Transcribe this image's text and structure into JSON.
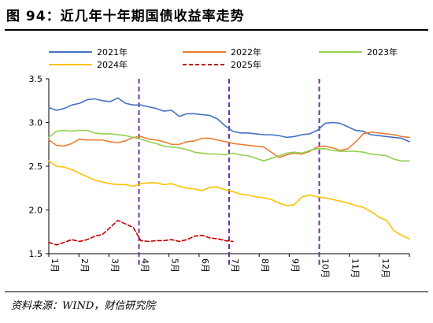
{
  "header": {
    "title": "图 94：近几年十年期国债收益率走势"
  },
  "footer": {
    "source": "资料来源：WIND，财信研究院"
  },
  "chart_data": {
    "type": "line",
    "title": "图 94：近几年十年期国债收益率走势",
    "ylim": [
      1.5,
      3.5
    ],
    "yticks": [
      "1.5",
      "2.0",
      "2.5",
      "3.0",
      "3.5"
    ],
    "months": [
      "1月",
      "2月",
      "3月",
      "4月",
      "5月",
      "6月",
      "7月",
      "8月",
      "9月",
      "10月",
      "11月",
      "12月"
    ],
    "legend_position": "top",
    "quarter_markers": [
      "4月",
      "7月",
      "10月"
    ],
    "grid": false,
    "series": [
      {
        "name": "2021年",
        "color": "#4472C4",
        "dash": false,
        "values": [
          3.17,
          3.14,
          3.16,
          3.2,
          3.22,
          3.26,
          3.27,
          3.25,
          3.24,
          3.28,
          3.22,
          3.2,
          3.2,
          3.18,
          3.16,
          3.13,
          3.14,
          3.07,
          3.1,
          3.1,
          3.09,
          3.08,
          3.04,
          2.96,
          2.9,
          2.88,
          2.88,
          2.87,
          2.86,
          2.86,
          2.85,
          2.83,
          2.84,
          2.86,
          2.87,
          2.91,
          2.99,
          3.0,
          2.99,
          2.95,
          2.91,
          2.9,
          2.86,
          2.85,
          2.84,
          2.83,
          2.82,
          2.78
        ]
      },
      {
        "name": "2022年",
        "color": "#ED7D31",
        "dash": false,
        "values": [
          2.8,
          2.74,
          2.73,
          2.76,
          2.81,
          2.8,
          2.8,
          2.8,
          2.78,
          2.77,
          2.79,
          2.83,
          2.84,
          2.81,
          2.8,
          2.78,
          2.75,
          2.75,
          2.78,
          2.79,
          2.82,
          2.82,
          2.8,
          2.78,
          2.76,
          2.75,
          2.74,
          2.73,
          2.72,
          2.66,
          2.6,
          2.63,
          2.65,
          2.64,
          2.67,
          2.72,
          2.73,
          2.71,
          2.68,
          2.7,
          2.78,
          2.87,
          2.89,
          2.88,
          2.87,
          2.86,
          2.84,
          2.83
        ]
      },
      {
        "name": "2023年",
        "color": "#92D050",
        "dash": false,
        "values": [
          2.83,
          2.9,
          2.91,
          2.9,
          2.91,
          2.91,
          2.88,
          2.87,
          2.87,
          2.86,
          2.85,
          2.83,
          2.81,
          2.78,
          2.76,
          2.73,
          2.72,
          2.71,
          2.69,
          2.66,
          2.65,
          2.64,
          2.64,
          2.63,
          2.65,
          2.63,
          2.62,
          2.59,
          2.56,
          2.59,
          2.62,
          2.65,
          2.66,
          2.65,
          2.68,
          2.7,
          2.7,
          2.68,
          2.67,
          2.67,
          2.67,
          2.66,
          2.64,
          2.63,
          2.62,
          2.58,
          2.56,
          2.56
        ]
      },
      {
        "name": "2024年",
        "color": "#FFC000",
        "dash": false,
        "values": [
          2.56,
          2.5,
          2.49,
          2.46,
          2.42,
          2.38,
          2.34,
          2.32,
          2.3,
          2.29,
          2.29,
          2.27,
          2.3,
          2.31,
          2.31,
          2.29,
          2.3,
          2.27,
          2.25,
          2.24,
          2.22,
          2.26,
          2.26,
          2.23,
          2.21,
          2.18,
          2.17,
          2.15,
          2.14,
          2.12,
          2.08,
          2.05,
          2.06,
          2.15,
          2.17,
          2.15,
          2.14,
          2.12,
          2.1,
          2.08,
          2.05,
          2.03,
          1.98,
          1.92,
          1.88,
          1.76,
          1.71,
          1.67
        ]
      },
      {
        "name": "2025年",
        "color": "#C00000",
        "dash": true,
        "values": [
          1.63,
          1.6,
          1.63,
          1.66,
          1.64,
          1.66,
          1.7,
          1.72,
          1.8,
          1.88,
          1.84,
          1.8,
          1.65,
          1.64,
          1.65,
          1.65,
          1.66,
          1.64,
          1.66,
          1.7,
          1.71,
          1.68,
          1.67,
          1.65,
          1.64
        ]
      }
    ]
  }
}
